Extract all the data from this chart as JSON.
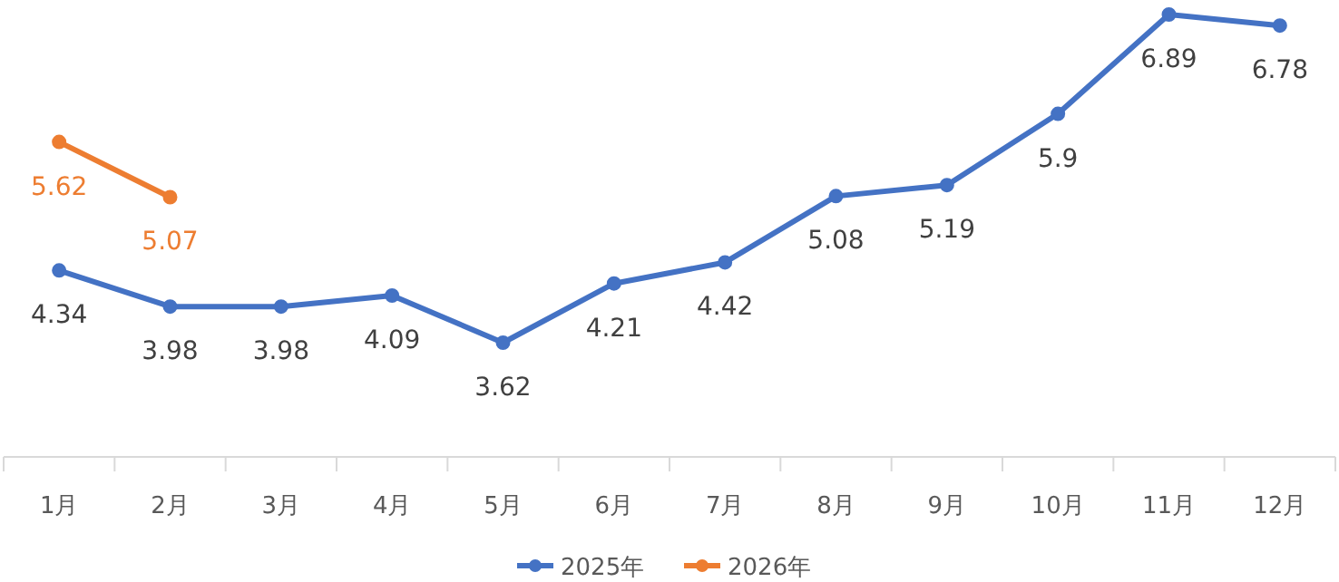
{
  "chart_data": {
    "type": "line",
    "categories": [
      "1月",
      "2月",
      "3月",
      "4月",
      "5月",
      "6月",
      "7月",
      "8月",
      "9月",
      "10月",
      "11月",
      "12月"
    ],
    "series": [
      {
        "name": "2025年",
        "color": "#4472c4",
        "values": [
          4.34,
          3.98,
          3.98,
          4.09,
          3.62,
          4.21,
          4.42,
          5.08,
          5.19,
          5.9,
          6.89,
          6.78
        ]
      },
      {
        "name": "2026年",
        "color": "#ed7d31",
        "values": [
          5.62,
          5.07,
          null,
          null,
          null,
          null,
          null,
          null,
          null,
          null,
          null,
          null
        ]
      }
    ],
    "data_labels": true,
    "legend": "bottom",
    "marker": "circle",
    "grid": false
  }
}
